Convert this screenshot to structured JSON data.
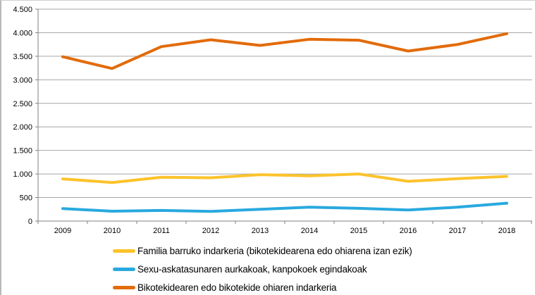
{
  "chart_data": {
    "type": "line",
    "categories": [
      "2009",
      "2010",
      "2011",
      "2012",
      "2013",
      "2014",
      "2015",
      "2016",
      "2017",
      "2018"
    ],
    "series": [
      {
        "name": "Familia barruko indarkeria (bikotekidearena edo ohiarena izan ezik)",
        "color": "#FCC32B",
        "values": [
          895,
          820,
          930,
          920,
          985,
          960,
          1000,
          845,
          900,
          950
        ]
      },
      {
        "name": "Sexu-askatasunaren aurkakoak, kanpokoek egindakoak",
        "color": "#29A9DF",
        "values": [
          265,
          210,
          225,
          205,
          250,
          295,
          270,
          235,
          295,
          380
        ]
      },
      {
        "name": "Bikotekidearen edo bikotekide ohiaren indarkeria",
        "color": "#E26B0A",
        "values": [
          3490,
          3240,
          3705,
          3850,
          3730,
          3860,
          3840,
          3610,
          3750,
          3980
        ]
      }
    ],
    "title": "",
    "xlabel": "",
    "ylabel": "",
    "ylim": [
      0,
      4500
    ],
    "ytick_step": 500,
    "ytick_labels": [
      "0",
      "500",
      "1.000",
      "1.500",
      "2.000",
      "2.500",
      "3.000",
      "3.500",
      "4.000",
      "4.500"
    ],
    "grid": true,
    "legend_position": "bottom"
  },
  "colors": {
    "gridline": "#A6A6A6",
    "axis": "#808080",
    "text": "#000000"
  }
}
